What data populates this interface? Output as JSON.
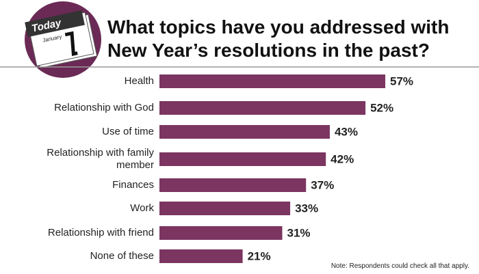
{
  "chart_data": {
    "type": "bar",
    "orientation": "horizontal",
    "title": [
      "What topics have you addressed with",
      "New Year’s resolutions in the past?"
    ],
    "icon_text": [
      "Today",
      "January"
    ],
    "categories": [
      "Health",
      "Relationship with God",
      "Use of time",
      "Relationship with family member",
      "Finances",
      "Work",
      "Relationship with friend",
      "None of these"
    ],
    "values": [
      57,
      52,
      43,
      42,
      37,
      33,
      31,
      21
    ],
    "value_labels": [
      "57%",
      "52%",
      "43%",
      "42%",
      "37%",
      "33%",
      "31%",
      "21%"
    ],
    "color": "#7b3560",
    "note": "Note: Respondents could check all that apply."
  }
}
